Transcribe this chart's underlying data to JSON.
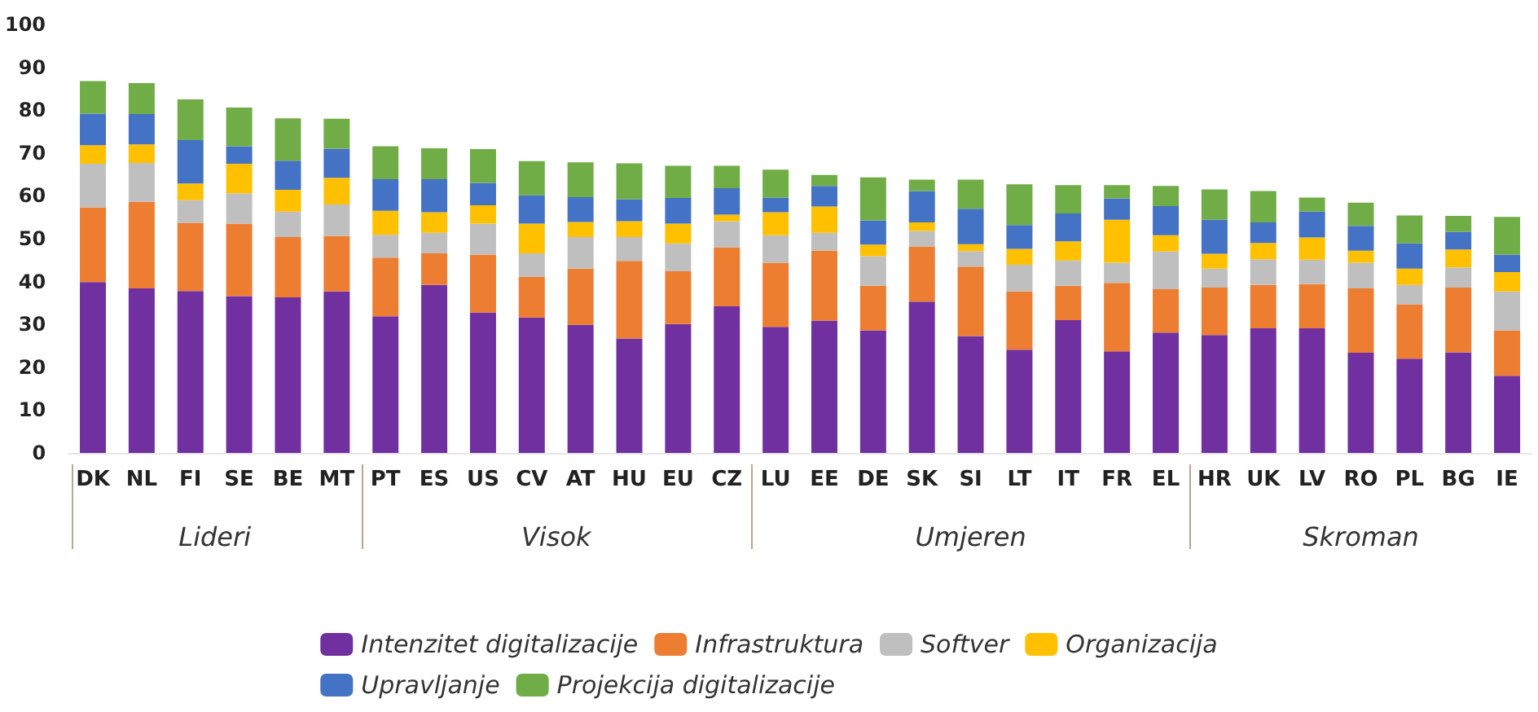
{
  "chart_data": {
    "type": "bar",
    "stacked": true,
    "categories": [
      "DK",
      "NL",
      "FI",
      "SE",
      "BE",
      "MT",
      "PT",
      "ES",
      "US",
      "CV",
      "AT",
      "HU",
      "EU",
      "CZ",
      "LU",
      "EE",
      "DE",
      "SK",
      "SI",
      "LT",
      "IT",
      "FR",
      "EL",
      "HR",
      "UK",
      "LV",
      "RO",
      "PL",
      "BG",
      "IE"
    ],
    "series": [
      {
        "name": "Intenzitet digitalizacije",
        "color": "#7030a0",
        "values": [
          39.9,
          38.4,
          37.8,
          36.6,
          36.3,
          37.7,
          31.9,
          39.2,
          32.8,
          31.6,
          29.9,
          26.7,
          30.1,
          34.2,
          29.4,
          30.9,
          28.6,
          35.3,
          27.3,
          24.1,
          31.0,
          23.7,
          28.1,
          27.5,
          29.1,
          29.1,
          23.4,
          22.0,
          23.5,
          18.0
        ]
      },
      {
        "name": "Infrastruktura",
        "color": "#ed7d31",
        "values": [
          17.4,
          20.2,
          15.9,
          16.9,
          14.1,
          12.9,
          13.7,
          7.4,
          13.5,
          9.5,
          13.1,
          18.1,
          12.3,
          13.8,
          15.0,
          16.3,
          10.4,
          12.9,
          16.2,
          13.6,
          8.0,
          16.0,
          10.1,
          11.1,
          10.1,
          10.3,
          15.0,
          12.6,
          15.1,
          10.6
        ]
      },
      {
        "name": "Softver",
        "color": "#bfbfbf",
        "values": [
          10.2,
          9.1,
          5.3,
          7.1,
          5.9,
          7.4,
          5.3,
          4.8,
          7.2,
          5.5,
          7.4,
          5.6,
          6.5,
          6.1,
          6.4,
          4.2,
          6.9,
          3.6,
          3.6,
          6.2,
          5.9,
          4.7,
          8.8,
          4.4,
          6.0,
          5.7,
          6.0,
          4.6,
          4.7,
          9.1
        ]
      },
      {
        "name": "Organizacija",
        "color": "#ffc000",
        "values": [
          4.3,
          4.3,
          3.9,
          6.9,
          5.1,
          6.2,
          5.6,
          4.8,
          4.3,
          6.9,
          3.5,
          3.7,
          4.6,
          1.5,
          5.4,
          6.1,
          2.7,
          2.0,
          1.6,
          3.7,
          4.5,
          10.0,
          3.8,
          3.5,
          3.8,
          5.2,
          2.8,
          3.8,
          4.2,
          4.5
        ]
      },
      {
        "name": "Upravljanje",
        "color": "#4472c4",
        "values": [
          7.4,
          7.1,
          10.1,
          4.1,
          6.8,
          6.8,
          7.4,
          7.7,
          5.2,
          6.6,
          5.8,
          5.1,
          6.0,
          6.2,
          3.4,
          4.8,
          5.7,
          7.3,
          8.3,
          5.6,
          6.5,
          5.0,
          6.8,
          7.9,
          4.8,
          6.0,
          5.8,
          5.9,
          4.1,
          4.1
        ]
      },
      {
        "name": "Projekcija digitalizacije",
        "color": "#70ad47",
        "values": [
          7.6,
          7.2,
          9.5,
          9.0,
          9.9,
          7.0,
          7.7,
          7.2,
          7.9,
          8.0,
          8.1,
          8.4,
          7.5,
          5.2,
          6.5,
          2.6,
          10.0,
          2.7,
          6.8,
          9.5,
          6.6,
          3.1,
          4.7,
          7.1,
          7.3,
          3.3,
          5.4,
          6.5,
          3.7,
          8.8
        ]
      }
    ],
    "ylim": [
      0,
      100
    ],
    "yticks": [
      0,
      10,
      20,
      30,
      40,
      50,
      60,
      70,
      80,
      90,
      100
    ],
    "grid": false,
    "legend": "bottom",
    "annotations": [
      "Lideri",
      "Visok",
      "Umjeren",
      "Skroman"
    ]
  }
}
